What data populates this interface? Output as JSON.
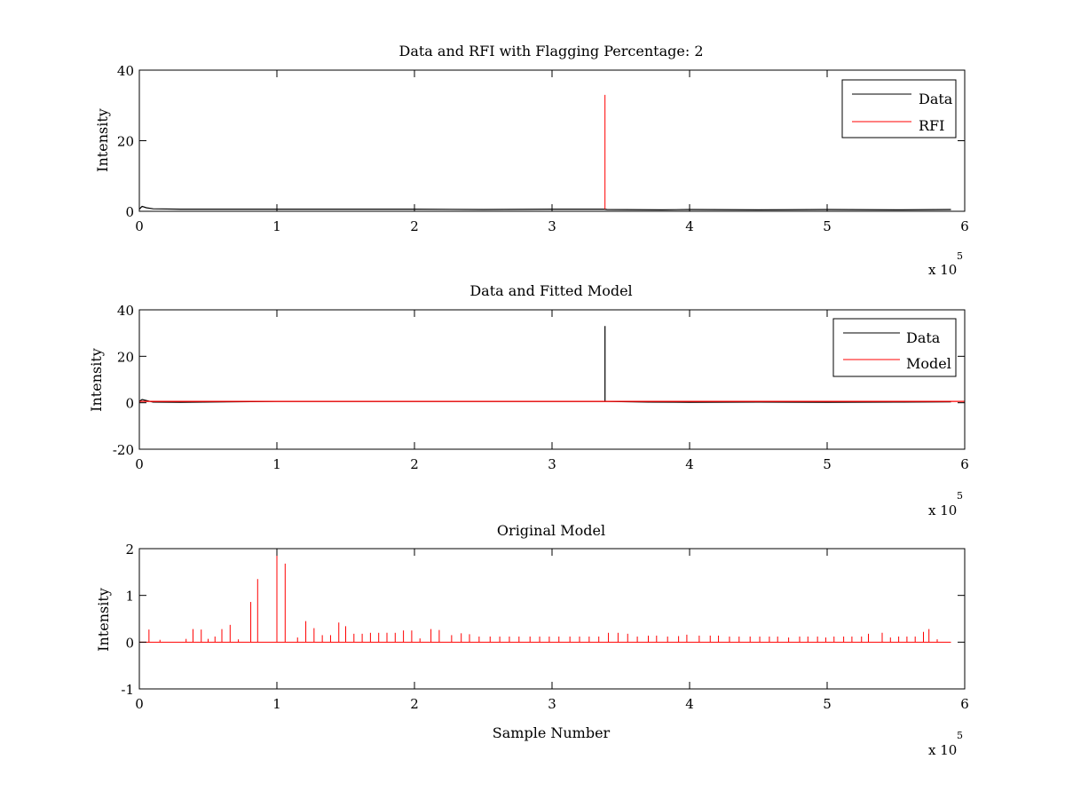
{
  "colors": {
    "data": "#000000",
    "red": "#ff0000",
    "axes": "#000000",
    "background": "#ffffff"
  },
  "chart_data": [
    {
      "type": "line",
      "title": "Data and RFI with Flagging Percentage: 2",
      "xlabel": "",
      "ylabel": "Intensity",
      "xlim": [
        0,
        6
      ],
      "ylim": [
        0,
        40
      ],
      "x_multiplier": "x 10",
      "x_exponent": "5",
      "xticks": [
        "0",
        "1",
        "2",
        "3",
        "4",
        "5",
        "6"
      ],
      "yticks": [
        "0",
        "20",
        "40"
      ],
      "legend": {
        "position": "top-right",
        "entries": [
          "Data",
          "RFI"
        ]
      },
      "series": [
        {
          "name": "Data",
          "color": "#000000",
          "baseline": 0.6,
          "x": [
            0,
            0.02,
            0.05,
            0.1,
            0.3,
            0.5,
            1.0,
            2.0,
            2.5,
            3.0,
            3.38,
            3.4,
            3.8,
            4.0,
            4.5,
            5.0,
            5.5,
            5.9
          ],
          "y": [
            0.6,
            1.4,
            1.0,
            0.7,
            0.6,
            0.6,
            0.6,
            0.6,
            0.5,
            0.6,
            0.6,
            0.5,
            0.4,
            0.5,
            0.4,
            0.5,
            0.4,
            0.5
          ]
        },
        {
          "name": "RFI",
          "color": "#ff0000",
          "baseline": 0.6,
          "x": [
            3.385
          ],
          "y": [
            33
          ]
        }
      ]
    },
    {
      "type": "line",
      "title": "Data and Fitted Model",
      "xlabel": "",
      "ylabel": "Intensity",
      "xlim": [
        0,
        6
      ],
      "ylim": [
        -20,
        40
      ],
      "x_multiplier": "x 10",
      "x_exponent": "5",
      "xticks": [
        "0",
        "1",
        "2",
        "3",
        "4",
        "5",
        "6"
      ],
      "yticks": [
        "-20",
        "0",
        "20",
        "40"
      ],
      "legend": {
        "position": "top-right",
        "entries": [
          "Data",
          "Model"
        ]
      },
      "series": [
        {
          "name": "Data",
          "color": "#000000",
          "baseline": 0.6,
          "x": [
            0,
            0.02,
            0.1,
            0.3,
            1.0,
            2.0,
            3.0,
            3.385,
            3.4,
            3.7,
            4.0,
            4.5,
            5.0,
            5.5,
            5.9
          ],
          "y": [
            0.6,
            1.4,
            0.3,
            0.2,
            0.6,
            0.6,
            0.6,
            33,
            0.6,
            0.3,
            0.2,
            0.3,
            0.2,
            0.3,
            0.4
          ]
        },
        {
          "name": "Model",
          "color": "#ff0000",
          "baseline": 0.6,
          "x": [
            0,
            6
          ],
          "y": [
            0.6,
            0.6
          ]
        }
      ]
    },
    {
      "type": "line",
      "title": "Original Model",
      "xlabel": "Sample Number",
      "ylabel": "Intensity",
      "xlim": [
        0,
        6
      ],
      "ylim": [
        -1,
        2
      ],
      "x_multiplier": "x 10",
      "x_exponent": "5",
      "xticks": [
        "0",
        "1",
        "2",
        "3",
        "4",
        "5",
        "6"
      ],
      "yticks": [
        "-1",
        "0",
        "1",
        "2"
      ],
      "series": [
        {
          "color": "#ff0000",
          "baseline": 0,
          "x": [
            0.07,
            0.15,
            0.34,
            0.39,
            0.45,
            0.5,
            0.55,
            0.6,
            0.66,
            0.72,
            0.81,
            0.86,
            1.0,
            1.06,
            1.15,
            1.21,
            1.27,
            1.33,
            1.39,
            1.45,
            1.5,
            1.56,
            1.62,
            1.68,
            1.74,
            1.8,
            1.86,
            1.92,
            1.98,
            2.04,
            2.12,
            2.18,
            2.27,
            2.34,
            2.4,
            2.47,
            2.55,
            2.62,
            2.69,
            2.76,
            2.84,
            2.91,
            2.98,
            3.05,
            3.13,
            3.2,
            3.27,
            3.34,
            3.41,
            3.48,
            3.55,
            3.62,
            3.7,
            3.76,
            3.84,
            3.92,
            3.98,
            4.07,
            4.15,
            4.21,
            4.29,
            4.36,
            4.44,
            4.51,
            4.58,
            4.64,
            4.72,
            4.8,
            4.86,
            4.93,
            4.99,
            5.05,
            5.12,
            5.18,
            5.25,
            5.3,
            5.4,
            5.46,
            5.52,
            5.58,
            5.64,
            5.7,
            5.74,
            5.8
          ],
          "y": [
            0.27,
            0.05,
            0.07,
            0.28,
            0.27,
            0.07,
            0.12,
            0.28,
            0.37,
            0.06,
            0.86,
            1.35,
            2.0,
            1.68,
            0.1,
            0.45,
            0.3,
            0.15,
            0.15,
            0.42,
            0.34,
            0.18,
            0.18,
            0.2,
            0.2,
            0.2,
            0.2,
            0.25,
            0.25,
            0.08,
            0.28,
            0.26,
            0.15,
            0.19,
            0.17,
            0.12,
            0.12,
            0.12,
            0.12,
            0.12,
            0.12,
            0.12,
            0.12,
            0.12,
            0.12,
            0.12,
            0.12,
            0.12,
            0.2,
            0.2,
            0.18,
            0.12,
            0.14,
            0.14,
            0.12,
            0.13,
            0.16,
            0.14,
            0.14,
            0.14,
            0.12,
            0.12,
            0.12,
            0.12,
            0.12,
            0.12,
            0.1,
            0.12,
            0.12,
            0.12,
            0.1,
            0.12,
            0.12,
            0.12,
            0.12,
            0.18,
            0.2,
            0.1,
            0.12,
            0.12,
            0.12,
            0.22,
            0.28,
            0.06
          ]
        }
      ]
    }
  ]
}
